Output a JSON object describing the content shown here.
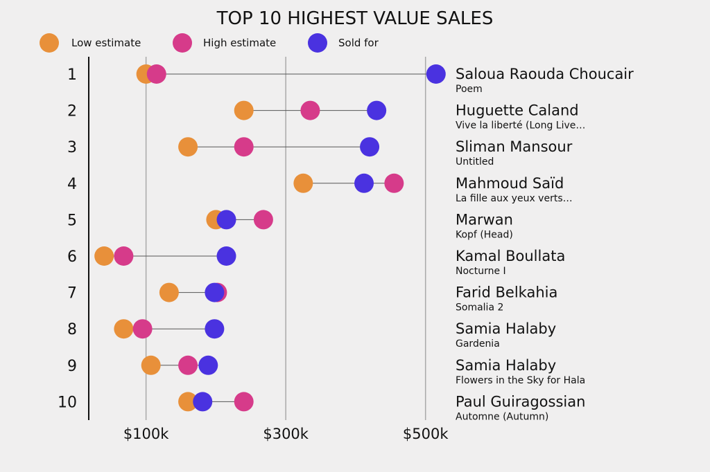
{
  "chart_data": {
    "type": "dumbbell",
    "title": "TOP 10 HIGHEST VALUE SALES",
    "legend": [
      {
        "key": "low",
        "label": "Low estimate",
        "color": "#e8903a"
      },
      {
        "key": "high",
        "label": "High estimate",
        "color": "#d63b8a"
      },
      {
        "key": "sold",
        "label": "Sold for",
        "color": "#4a32e0"
      }
    ],
    "x_ticks": [
      {
        "value": 100000,
        "label": "$100k"
      },
      {
        "value": 300000,
        "label": "$300k"
      },
      {
        "value": 500000,
        "label": "$500k"
      }
    ],
    "xlim": [
      18000,
      540000
    ],
    "rows": [
      {
        "rank": "1",
        "artist": "Saloua Raouda Choucair",
        "work": "Poem",
        "low": 100000,
        "high": 115000,
        "sold": 515000
      },
      {
        "rank": "2",
        "artist": "Huguette Caland",
        "work": "Vive la liberté (Long Live…",
        "low": 240000,
        "high": 335000,
        "sold": 430000
      },
      {
        "rank": "3",
        "artist": "Sliman Mansour",
        "work": "Untitled",
        "low": 160000,
        "high": 240000,
        "sold": 420000
      },
      {
        "rank": "4",
        "artist": "Mahmoud Saïd",
        "work": "La fille aux yeux verts…",
        "low": 325000,
        "high": 455000,
        "sold": 412000
      },
      {
        "rank": "5",
        "artist": "Marwan",
        "work": "Kopf (Head)",
        "low": 200000,
        "high": 268000,
        "sold": 215000
      },
      {
        "rank": "6",
        "artist": "Kamal Boullata",
        "work": "Nocturne I",
        "low": 40000,
        "high": 68000,
        "sold": 215000
      },
      {
        "rank": "7",
        "artist": "Farid Belkahia",
        "work": "Somalia 2",
        "low": 133000,
        "high": 202000,
        "sold": 198000
      },
      {
        "rank": "8",
        "artist": "Samia Halaby",
        "work": "Gardenia",
        "low": 68000,
        "high": 95000,
        "sold": 198000
      },
      {
        "rank": "9",
        "artist": "Samia Halaby",
        "work": "Flowers in the Sky for Hala",
        "low": 107000,
        "high": 160000,
        "sold": 189000
      },
      {
        "rank": "10",
        "artist": "Paul Guiragossian",
        "work": "Automne (Autumn)",
        "low": 160000,
        "high": 240000,
        "sold": 181000
      }
    ]
  }
}
